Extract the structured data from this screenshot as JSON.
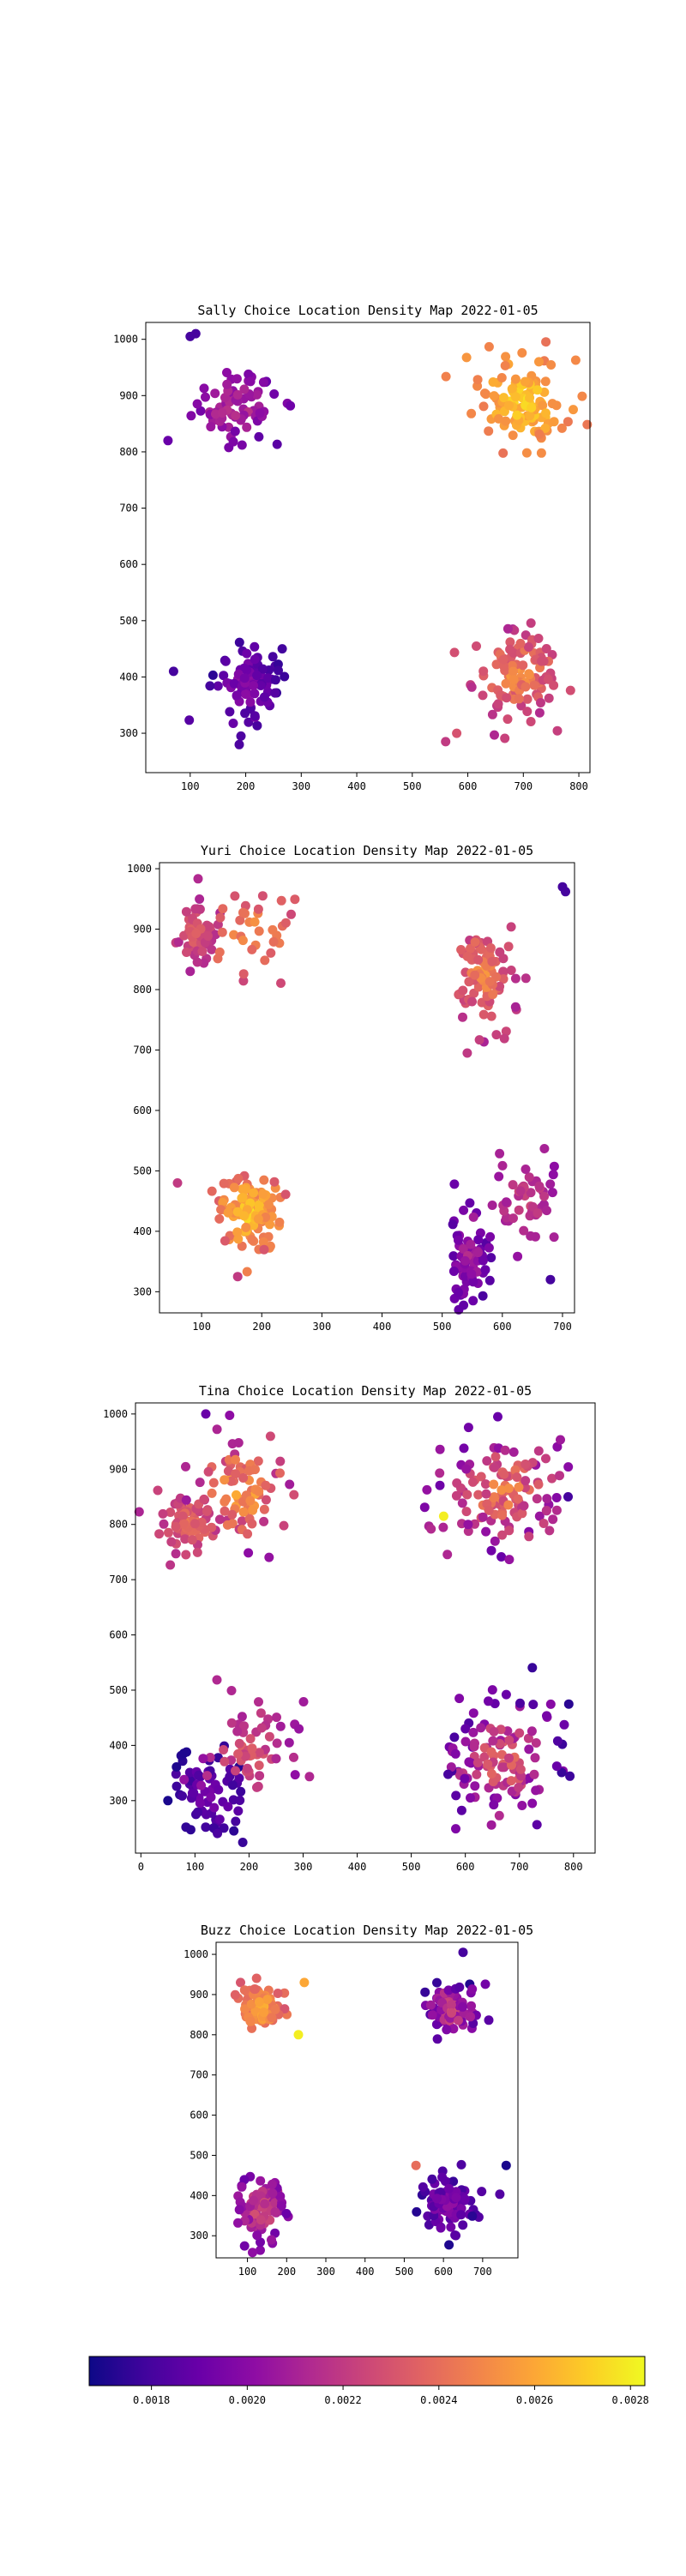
{
  "colors": {
    "plasma": [
      "#0d0887",
      "#41049d",
      "#6a00a8",
      "#8f0da4",
      "#b12a90",
      "#cc4778",
      "#e16462",
      "#f2844b",
      "#fca636",
      "#fcce25",
      "#f0f921"
    ]
  },
  "colorbar": {
    "ticks": [
      0.0018,
      0.002,
      0.0022,
      0.0024,
      0.0026,
      0.0028
    ],
    "tick_labels": [
      "0.0018",
      "0.0020",
      "0.0022",
      "0.0024",
      "0.0026",
      "0.0028"
    ],
    "range": [
      0.00167,
      0.00283
    ]
  },
  "chart_data": [
    {
      "type": "scatter",
      "title": "Sally Choice Location Density Map 2022-01-05",
      "xlim": [
        20,
        820
      ],
      "ylim": [
        230,
        1030
      ],
      "xticks": [
        100,
        200,
        300,
        400,
        500,
        600,
        700,
        800
      ],
      "yticks": [
        300,
        400,
        500,
        600,
        700,
        800,
        900,
        1000
      ],
      "clusters": [
        {
          "cx": 180,
          "cy": 880,
          "sx": 38,
          "sy": 30,
          "n": 80,
          "d": [
            0.00185,
            0.00225
          ]
        },
        {
          "cx": 700,
          "cy": 890,
          "sx": 40,
          "sy": 38,
          "n": 120,
          "d": [
            0.0024,
            0.0028
          ]
        },
        {
          "cx": 200,
          "cy": 385,
          "sx": 30,
          "sy": 40,
          "n": 90,
          "d": [
            0.0017,
            0.0021
          ]
        },
        {
          "cx": 690,
          "cy": 405,
          "sx": 40,
          "sy": 38,
          "n": 110,
          "d": [
            0.0021,
            0.0026
          ]
        }
      ],
      "points": [
        {
          "x": 100,
          "y": 1005,
          "d": 0.0018
        },
        {
          "x": 110,
          "y": 1010,
          "d": 0.0018
        },
        {
          "x": 60,
          "y": 820,
          "d": 0.0019
        },
        {
          "x": 70,
          "y": 410,
          "d": 0.0018
        },
        {
          "x": 560,
          "y": 285,
          "d": 0.0022
        },
        {
          "x": 580,
          "y": 300,
          "d": 0.0023
        }
      ]
    },
    {
      "type": "scatter",
      "title": "Yuri Choice Location Density Map 2022-01-05",
      "xlim": [
        30,
        720
      ],
      "ylim": [
        265,
        1010
      ],
      "xticks": [
        100,
        200,
        300,
        400,
        500,
        600,
        700
      ],
      "yticks": [
        300,
        400,
        500,
        600,
        700,
        800,
        900,
        1000
      ],
      "clusters": [
        {
          "cx": 90,
          "cy": 895,
          "sx": 16,
          "sy": 28,
          "n": 70,
          "d": [
            0.0021,
            0.0024
          ]
        },
        {
          "cx": 180,
          "cy": 890,
          "sx": 45,
          "sy": 38,
          "n": 35,
          "d": [
            0.0022,
            0.0026
          ]
        },
        {
          "cx": 570,
          "cy": 830,
          "sx": 25,
          "sy": 40,
          "n": 90,
          "d": [
            0.0021,
            0.0026
          ]
        },
        {
          "cx": 180,
          "cy": 430,
          "sx": 28,
          "sy": 30,
          "n": 110,
          "d": [
            0.0023,
            0.0028
          ]
        },
        {
          "cx": 545,
          "cy": 355,
          "sx": 16,
          "sy": 35,
          "n": 80,
          "d": [
            0.0018,
            0.0022
          ]
        },
        {
          "cx": 640,
          "cy": 450,
          "sx": 28,
          "sy": 35,
          "n": 50,
          "d": [
            0.002,
            0.0023
          ]
        }
      ],
      "points": [
        {
          "x": 700,
          "y": 970,
          "d": 0.0018
        },
        {
          "x": 705,
          "y": 962,
          "d": 0.0018
        },
        {
          "x": 680,
          "y": 320,
          "d": 0.0018
        },
        {
          "x": 160,
          "y": 325,
          "d": 0.0022
        },
        {
          "x": 60,
          "y": 480,
          "d": 0.0022
        }
      ]
    },
    {
      "type": "scatter",
      "title": "Tina Choice Location Density Map 2022-01-05",
      "xlim": [
        -10,
        840
      ],
      "ylim": [
        205,
        1020
      ],
      "xticks": [
        0,
        100,
        200,
        300,
        400,
        500,
        600,
        700,
        800
      ],
      "yticks": [
        300,
        400,
        500,
        600,
        700,
        800,
        900,
        1000
      ],
      "clusters": [
        {
          "cx": 90,
          "cy": 800,
          "sx": 28,
          "sy": 25,
          "n": 70,
          "d": [
            0.0021,
            0.0025
          ]
        },
        {
          "cx": 190,
          "cy": 860,
          "sx": 45,
          "sy": 50,
          "n": 80,
          "d": [
            0.002,
            0.0027
          ]
        },
        {
          "cx": 670,
          "cy": 860,
          "sx": 55,
          "sy": 48,
          "n": 130,
          "d": [
            0.0019,
            0.0026
          ]
        },
        {
          "cx": 130,
          "cy": 310,
          "sx": 35,
          "sy": 40,
          "n": 70,
          "d": [
            0.0017,
            0.002
          ]
        },
        {
          "cx": 200,
          "cy": 390,
          "sx": 40,
          "sy": 45,
          "n": 60,
          "d": [
            0.002,
            0.0024
          ]
        },
        {
          "cx": 670,
          "cy": 370,
          "sx": 55,
          "sy": 60,
          "n": 130,
          "d": [
            0.0017,
            0.0025
          ]
        }
      ],
      "points": [
        {
          "x": 120,
          "y": 1000,
          "d": 0.0019
        },
        {
          "x": 660,
          "y": 995,
          "d": 0.0019
        },
        {
          "x": 50,
          "y": 300,
          "d": 0.0017
        },
        {
          "x": 790,
          "y": 850,
          "d": 0.0018
        },
        {
          "x": 560,
          "y": 815,
          "d": 0.0028
        }
      ]
    },
    {
      "type": "scatter",
      "title": "Buzz Choice Location Density Map 2022-01-05",
      "xlim": [
        20,
        790
      ],
      "ylim": [
        245,
        1030
      ],
      "xticks": [
        100,
        200,
        300,
        400,
        500,
        600,
        700
      ],
      "yticks": [
        300,
        400,
        500,
        600,
        700,
        800,
        900,
        1000
      ],
      "clusters": [
        {
          "cx": 135,
          "cy": 870,
          "sx": 25,
          "sy": 28,
          "n": 90,
          "d": [
            0.0023,
            0.0027
          ]
        },
        {
          "cx": 620,
          "cy": 865,
          "sx": 35,
          "sy": 35,
          "n": 90,
          "d": [
            0.0017,
            0.0024
          ]
        },
        {
          "cx": 135,
          "cy": 370,
          "sx": 28,
          "sy": 40,
          "n": 80,
          "d": [
            0.0019,
            0.0024
          ]
        },
        {
          "cx": 610,
          "cy": 375,
          "sx": 35,
          "sy": 35,
          "n": 85,
          "d": [
            0.0017,
            0.0021
          ]
        }
      ],
      "points": [
        {
          "x": 245,
          "y": 930,
          "d": 0.0026
        },
        {
          "x": 230,
          "y": 800,
          "d": 0.0028
        },
        {
          "x": 650,
          "y": 1005,
          "d": 0.0018
        },
        {
          "x": 760,
          "y": 475,
          "d": 0.0017
        },
        {
          "x": 530,
          "y": 475,
          "d": 0.0024
        }
      ]
    }
  ]
}
